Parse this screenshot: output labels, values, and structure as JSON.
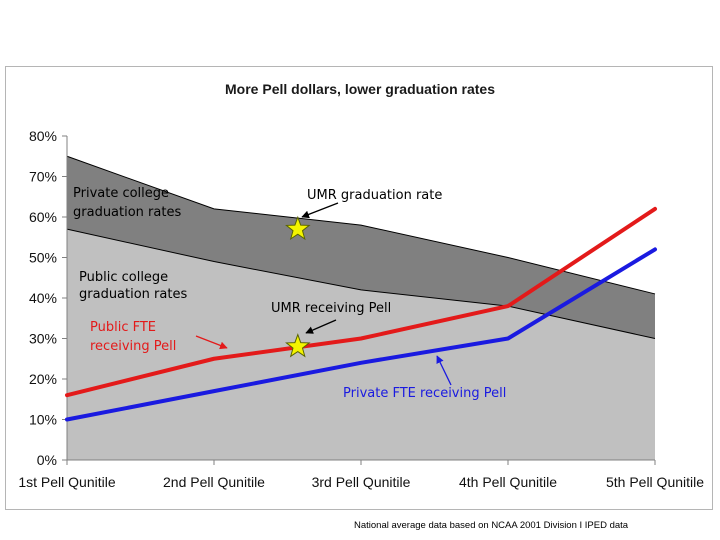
{
  "chart_data": {
    "type": "area",
    "title": "More Pell dollars, lower graduation rates",
    "categories": [
      "1st Pell Qunitile",
      "2nd Pell Qunitile",
      "3rd Pell Qunitile",
      "4th Pell Qunitile",
      "5th Pell Qunitile"
    ],
    "y_ticks": [
      "0%",
      "10%",
      "20%",
      "30%",
      "40%",
      "50%",
      "60%",
      "70%",
      "80%"
    ],
    "ylim": [
      0,
      80
    ],
    "y_unit": "percent",
    "grid": false,
    "areas": [
      {
        "key": "private_grad",
        "values": [
          75,
          62,
          58,
          50,
          41
        ],
        "color": "#808080"
      },
      {
        "key": "public_grad",
        "values": [
          57,
          49,
          42,
          38,
          30
        ],
        "color": "#c0c0c0"
      }
    ],
    "lines": [
      {
        "key": "public_fte_pell",
        "values": [
          16,
          25,
          30,
          38,
          62
        ],
        "color": "#e31a1a"
      },
      {
        "key": "private_fte_pell",
        "values": [
          10,
          17,
          24,
          30,
          52
        ],
        "color": "#1a1ae0"
      }
    ],
    "points": [
      {
        "key": "umr_graduation_rate",
        "x": 1.57,
        "y": 57,
        "color": "#f4f400"
      },
      {
        "key": "umr_receiving_pell",
        "x": 1.57,
        "y": 28,
        "color": "#f4f400"
      }
    ],
    "annotations": [
      {
        "key": "private_college",
        "lines": [
          "Private college",
          "graduation rates"
        ],
        "color": "#000000"
      },
      {
        "key": "umr_grad",
        "lines": [
          "UMR graduation rate"
        ],
        "color": "#000000"
      },
      {
        "key": "public_college",
        "lines": [
          "Public college",
          "graduation rates"
        ],
        "color": "#000000"
      },
      {
        "key": "umr_pell",
        "lines": [
          "UMR receiving Pell"
        ],
        "color": "#000000"
      },
      {
        "key": "public_fte",
        "lines": [
          "Public FTE",
          "receiving Pell"
        ],
        "color": "#e31a1a"
      },
      {
        "key": "private_fte",
        "lines": [
          "Private FTE receiving Pell"
        ],
        "color": "#1a1ae0"
      }
    ],
    "footnote": "National average data based on NCAA 2001 Division I IPED data"
  }
}
